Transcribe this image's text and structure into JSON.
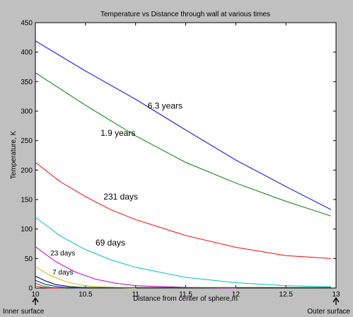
{
  "chart_data": {
    "type": "line",
    "title": "Temperature vs Distance through wall at various times",
    "xlabel": "Distance from center of sphere,m",
    "ylabel": "Temperature, K",
    "xlim": [
      10,
      13
    ],
    "ylim": [
      0,
      450
    ],
    "xticks": [
      "10",
      "10.5",
      "11",
      "11.5",
      "12",
      "12.5",
      "13"
    ],
    "yticks": [
      "0",
      "50",
      "100",
      "150",
      "200",
      "250",
      "300",
      "350",
      "400",
      "450"
    ],
    "grid": false,
    "series": [
      {
        "name": "6.3 years",
        "color": "#0000ff",
        "x": [
          10,
          10.5,
          11,
          11.5,
          12,
          12.5,
          12.95
        ],
        "y": [
          419,
          368,
          320,
          268,
          217,
          172,
          133
        ]
      },
      {
        "name": "1.9 years",
        "color": "#008000",
        "x": [
          10,
          10.5,
          11,
          11.5,
          12,
          12.5,
          12.95
        ],
        "y": [
          365,
          310,
          258,
          213,
          178,
          147,
          122
        ]
      },
      {
        "name": "231 days",
        "color": "#ff0000",
        "x": [
          10,
          10.25,
          10.5,
          10.75,
          11,
          11.5,
          12,
          12.5,
          12.95
        ],
        "y": [
          213,
          180,
          155,
          133,
          116,
          89,
          69,
          55,
          50
        ]
      },
      {
        "name": "69 days",
        "color": "#00bfbf",
        "x": [
          10,
          10.25,
          10.5,
          10.75,
          11,
          11.5,
          12,
          12.5,
          12.95
        ],
        "y": [
          120,
          88,
          65,
          48,
          35,
          18,
          9,
          4,
          2
        ]
      },
      {
        "name": "23 days",
        "color": "#bf00bf",
        "x": [
          10,
          10.2,
          10.4,
          10.6,
          10.8,
          11,
          11.5,
          12
        ],
        "y": [
          70,
          45,
          27,
          15,
          8,
          4,
          1,
          0
        ]
      },
      {
        "name": "7 days",
        "color": "#bfbf00",
        "x": [
          10,
          10.15,
          10.3,
          10.45,
          10.6,
          10.8,
          11
        ],
        "y": [
          36,
          21,
          11,
          5,
          2,
          1,
          0
        ]
      },
      {
        "name": "",
        "color": "#000000",
        "x": [
          10,
          10.1,
          10.2,
          10.35,
          10.5,
          10.7
        ],
        "y": [
          20,
          12,
          6,
          2,
          1,
          0
        ]
      },
      {
        "name": "",
        "color": "#0000ff",
        "x": [
          10,
          10.1,
          10.2,
          10.3,
          10.45
        ],
        "y": [
          13,
          6,
          3,
          1,
          0
        ]
      },
      {
        "name": "",
        "color": "#008000",
        "x": [
          10,
          10.08,
          10.16,
          10.3
        ],
        "y": [
          8,
          3,
          1,
          0
        ]
      },
      {
        "name": "",
        "color": "#ff0000",
        "x": [
          10,
          10.07,
          10.15,
          10.25
        ],
        "y": [
          4,
          1,
          0,
          0
        ]
      },
      {
        "name": "",
        "color": "#008000",
        "x": [
          10.3,
          12.95
        ],
        "y": [
          1,
          1
        ]
      }
    ],
    "annotations": [
      {
        "text": "6.3 years",
        "x": 11.12,
        "y": 304,
        "size": 12
      },
      {
        "text": "1.9 years",
        "x": 10.65,
        "y": 258,
        "size": 12
      },
      {
        "text": "231 days",
        "x": 10.68,
        "y": 150,
        "size": 12
      },
      {
        "text": "69 days",
        "x": 10.6,
        "y": 72,
        "size": 12
      },
      {
        "text": "23 days",
        "x": 10.15,
        "y": 55,
        "size": 10
      },
      {
        "text": "7 days",
        "x": 10.17,
        "y": 23,
        "size": 10
      }
    ],
    "surface_labels": {
      "inner": "Inner surface",
      "outer": "Outer surface"
    }
  }
}
